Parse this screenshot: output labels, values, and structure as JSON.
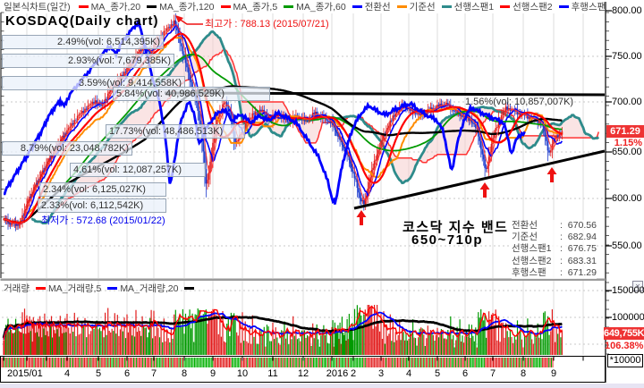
{
  "title": "KOSDAQ(Daily chart)",
  "header": {
    "chart_style_label": "일본식차트(일간)",
    "legend": [
      {
        "label": "MA_종가,20",
        "color": "#ff0000"
      },
      {
        "label": "MA_종가,120",
        "color": "#000000"
      },
      {
        "label": "MA_종가,5",
        "color": "#ff0000"
      },
      {
        "label": "MA_종가,60",
        "color": "#009a00"
      },
      {
        "label": "전환선",
        "color": "#0000ff"
      },
      {
        "label": "기준선",
        "color": "#ff8c00"
      },
      {
        "label": "선행스팬1",
        "color": "#2e8b8b"
      },
      {
        "label": "선행스팬2",
        "color": "#ff0000"
      },
      {
        "label": "후행스팬",
        "color": "#0000ff"
      }
    ]
  },
  "volume_legend": {
    "label": "거래량",
    "items": [
      {
        "label": "MA_거래량,5",
        "color": "#ff0000"
      },
      {
        "label": "MA_거래량,20",
        "color": "#0000ff"
      },
      {
        "label": "",
        "color": "#000000"
      }
    ]
  },
  "price_axis": {
    "ticks": [
      "800.00",
      "750.00",
      "700.00",
      "650.00",
      "600.00",
      "550.00"
    ],
    "current_badge": "671.29",
    "change_pct": "1.15%"
  },
  "volume_axis": {
    "ticks": [
      "150000",
      "100000"
    ],
    "current_badge": "649,755K",
    "ratio_pct": "106.38%",
    "unit": "*10000",
    "close_icon": "×"
  },
  "x_axis": {
    "labels": [
      "2015/01",
      "4",
      "5",
      "6",
      "7",
      "8",
      "9",
      "10",
      "11",
      "12",
      "2016",
      "2",
      "3",
      "4",
      "5",
      "6",
      "7",
      "8",
      "9"
    ]
  },
  "annotations": {
    "high_label": "최고가 : 788.13 (2015/07/21)",
    "low_label": "최저가 : 572.68 (2015/01/22)",
    "band_line1": "코스닥 지수 밴드",
    "band_line2": "650~710p",
    "callouts": [
      "2.49%(vol: 6,514,395K)",
      "2.93%(vol: 7,679,385K)",
      "3.59%(vol: 9,414,558K)",
      "5.84%(vol: 40,986,529K)",
      "17.73%(vol: 48,486,513K)",
      "8.79%(vol: 23,048,782K)",
      "4.61%(vol: 12,087,257K)",
      "2.34%(vol: 6,125,027K)",
      "2.33%(vol: 6,112,542K)"
    ],
    "right_callout": "1.56%(vol: 10,857,007K)"
  },
  "ichimoku_values": [
    {
      "label": "전환선",
      "value": "670.56"
    },
    {
      "label": "기준선",
      "value": "682.94"
    },
    {
      "label": "선행스팬1",
      "value": "676.75"
    },
    {
      "label": "선행스팬2",
      "value": "683.31"
    },
    {
      "label": "후행스팬",
      "value": "671.29"
    }
  ],
  "chart_data": {
    "type": "candlestick",
    "instrument": "KOSDAQ",
    "period": "daily",
    "x_range": [
      "2015/01",
      "2016/09"
    ],
    "price_axis_ticks": [
      800,
      750,
      700,
      650,
      600,
      550
    ],
    "volume_axis_ticks": [
      150000,
      100000
    ],
    "volume_unit_multiplier": 10000,
    "current_price": 671.29,
    "current_change_pct": 1.15,
    "current_volume": "649,755K",
    "volume_ratio_pct": 106.38,
    "high": {
      "value": 788.13,
      "date": "2015/07/21"
    },
    "low": {
      "value": 572.68,
      "date": "2015/01/22"
    },
    "band": {
      "low": 650,
      "high": 710,
      "label": "코스닥 지수 밴드 650~710p"
    },
    "ichimoku": {
      "tenkan": 670.56,
      "kijun": 682.94,
      "spanA": 676.75,
      "spanB": 683.31,
      "chikou": 671.29
    },
    "ma_periods_price": [
      5,
      20,
      60,
      120
    ],
    "ma_periods_volume": [
      5,
      20
    ],
    "price_path": [
      [
        0,
        578
      ],
      [
        0.3,
        574
      ],
      [
        0.7,
        572.7
      ],
      [
        1.0,
        594
      ],
      [
        1.4,
        612
      ],
      [
        1.8,
        628
      ],
      [
        2.2,
        644
      ],
      [
        2.6,
        658
      ],
      [
        3.0,
        672
      ],
      [
        3.3,
        686
      ],
      [
        3.6,
        696
      ],
      [
        3.9,
        704
      ],
      [
        4.1,
        698
      ],
      [
        4.4,
        714
      ],
      [
        4.7,
        726
      ],
      [
        5.0,
        738
      ],
      [
        5.3,
        750
      ],
      [
        5.6,
        762
      ],
      [
        5.85,
        754
      ],
      [
        6.1,
        768
      ],
      [
        6.4,
        779
      ],
      [
        6.67,
        788
      ],
      [
        6.85,
        768
      ],
      [
        7.1,
        738
      ],
      [
        7.4,
        706
      ],
      [
        7.6,
        672
      ],
      [
        7.77,
        612
      ],
      [
        7.95,
        648
      ],
      [
        8.15,
        686
      ],
      [
        8.4,
        703
      ],
      [
        8.6,
        690
      ],
      [
        8.75,
        657
      ],
      [
        9.0,
        674
      ],
      [
        9.3,
        688
      ],
      [
        9.6,
        695
      ],
      [
        9.9,
        683
      ],
      [
        10.2,
        690
      ],
      [
        10.5,
        681
      ],
      [
        10.8,
        688
      ],
      [
        11.1,
        683
      ],
      [
        11.4,
        691
      ],
      [
        11.7,
        686
      ],
      [
        12.0,
        681
      ],
      [
        12.4,
        662
      ],
      [
        12.8,
        643
      ],
      [
        13.1,
        618
      ],
      [
        13.25,
        600
      ],
      [
        13.4,
        594
      ],
      [
        13.6,
        622
      ],
      [
        13.9,
        652
      ],
      [
        14.2,
        674
      ],
      [
        14.5,
        690
      ],
      [
        14.8,
        699
      ],
      [
        15.1,
        693
      ],
      [
        15.4,
        689
      ],
      [
        15.7,
        694
      ],
      [
        16.0,
        698
      ],
      [
        16.3,
        701
      ],
      [
        16.6,
        694
      ],
      [
        16.9,
        688
      ],
      [
        17.2,
        684
      ],
      [
        17.45,
        672
      ],
      [
        17.6,
        650
      ],
      [
        17.75,
        628
      ],
      [
        17.95,
        658
      ],
      [
        18.2,
        684
      ],
      [
        18.45,
        697
      ],
      [
        18.7,
        693
      ],
      [
        19.0,
        689
      ],
      [
        19.3,
        685
      ],
      [
        19.6,
        681
      ],
      [
        19.85,
        648
      ],
      [
        20.0,
        662
      ],
      [
        20.15,
        668
      ],
      [
        20.3,
        671.29
      ]
    ]
  }
}
